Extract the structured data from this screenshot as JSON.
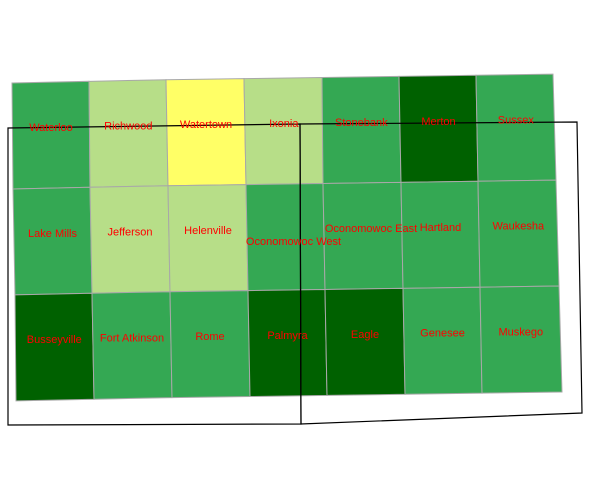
{
  "palette": {
    "yellow": "#ffff66",
    "light": "#b7de88",
    "medium": "#34a853",
    "dark": "#006100",
    "label": "#ff0000",
    "boundary": "#000000",
    "grid": "#a8a8a8"
  },
  "map": {
    "rows": [
      {
        "cells": [
          {
            "name": "Waterloo",
            "class": "medium"
          },
          {
            "name": "Richwood",
            "class": "light"
          },
          {
            "name": "Watertown",
            "class": "yellow"
          },
          {
            "name": "Ixonia",
            "class": "light"
          },
          {
            "name": "Stonebank",
            "class": "medium"
          },
          {
            "name": "Merton",
            "class": "dark"
          },
          {
            "name": "Sussex",
            "class": "medium"
          }
        ]
      },
      {
        "cells": [
          {
            "name": "Lake Mills",
            "class": "medium"
          },
          {
            "name": "Jefferson",
            "class": "light"
          },
          {
            "name": "Helenville",
            "class": "light"
          },
          {
            "name": "Oconomowoc West",
            "class": "medium"
          },
          {
            "name": "Oconomowoc East",
            "class": "medium"
          },
          {
            "name": "Hartland",
            "class": "medium"
          },
          {
            "name": "Waukesha",
            "class": "medium"
          }
        ]
      },
      {
        "cells": [
          {
            "name": "Busseyville",
            "class": "dark"
          },
          {
            "name": "Fort Atkinson",
            "class": "medium"
          },
          {
            "name": "Rome",
            "class": "medium"
          },
          {
            "name": "Palmyra",
            "class": "dark"
          },
          {
            "name": "Eagle",
            "class": "dark"
          },
          {
            "name": "Genesee",
            "class": "medium"
          },
          {
            "name": "Muskego",
            "class": "medium"
          }
        ]
      }
    ]
  }
}
